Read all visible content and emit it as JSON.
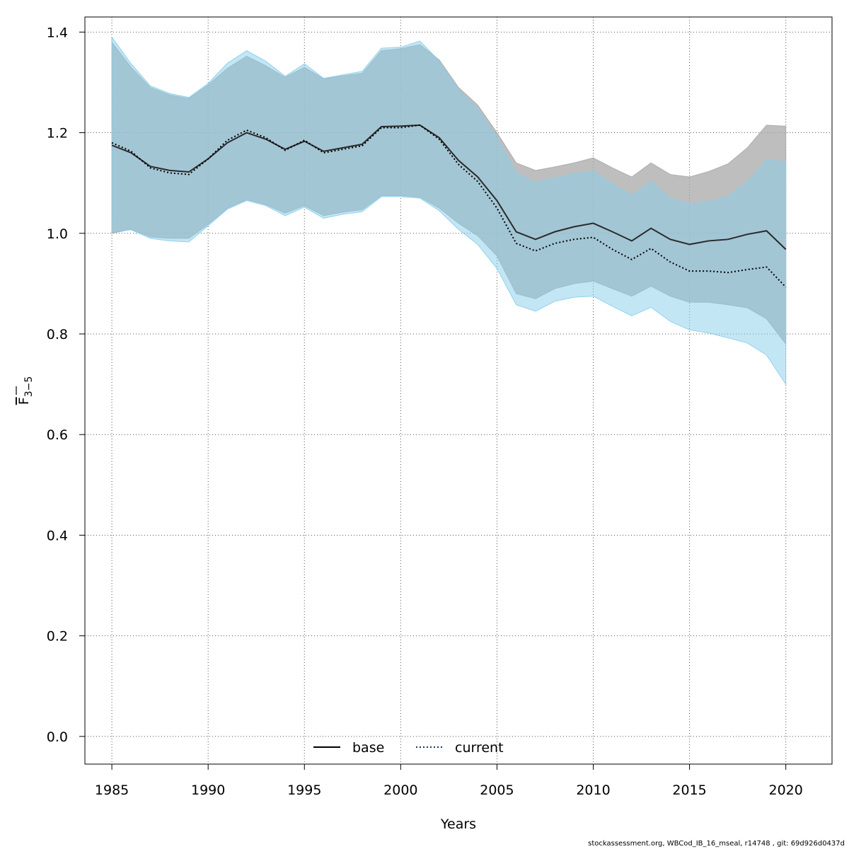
{
  "chart_data": {
    "type": "area",
    "xlabel": "Years",
    "ylabel": {
      "main": "F",
      "sub": "3−5"
    },
    "xlim": [
      1983.6,
      2022.4
    ],
    "ylim": [
      -0.055,
      1.43
    ],
    "x_ticks": [
      1985,
      1990,
      1995,
      2000,
      2005,
      2010,
      2015,
      2020
    ],
    "y_ticks": [
      0.0,
      0.2,
      0.4,
      0.6,
      0.8,
      1.0,
      1.2,
      1.4
    ],
    "y_tick_labels": [
      "0.0",
      "0.2",
      "0.4",
      "0.6",
      "0.8",
      "1.0",
      "1.2",
      "1.4"
    ],
    "x_tick_labels": [
      "1985",
      "1990",
      "1995",
      "2000",
      "2005",
      "2010",
      "2015",
      "2020"
    ],
    "grid": true,
    "legend_position": "bottom",
    "x": [
      1985,
      1986,
      1987,
      1988,
      1989,
      1990,
      1991,
      1992,
      1993,
      1994,
      1995,
      1996,
      1997,
      1998,
      1999,
      2000,
      2001,
      2002,
      2003,
      2004,
      2005,
      2006,
      2007,
      2008,
      2009,
      2010,
      2011,
      2012,
      2013,
      2014,
      2015,
      2016,
      2017,
      2018,
      2019,
      2020
    ],
    "series": [
      {
        "name": "base",
        "line_color": "#000000",
        "band_color": "#a8a8a8",
        "line_style": "solid",
        "values": [
          1.175,
          1.16,
          1.133,
          1.125,
          1.122,
          1.148,
          1.18,
          1.2,
          1.187,
          1.167,
          1.183,
          1.163,
          1.17,
          1.177,
          1.212,
          1.213,
          1.215,
          1.19,
          1.145,
          1.112,
          1.065,
          1.003,
          0.988,
          1.003,
          1.013,
          1.02,
          1.003,
          0.985,
          1.01,
          0.988,
          0.978,
          0.985,
          0.988,
          0.998,
          1.005,
          0.968
        ],
        "lower": [
          1.0,
          1.008,
          0.993,
          0.99,
          0.99,
          1.018,
          1.05,
          1.067,
          1.057,
          1.04,
          1.055,
          1.035,
          1.042,
          1.047,
          1.075,
          1.075,
          1.072,
          1.05,
          1.02,
          0.995,
          0.955,
          0.88,
          0.87,
          0.89,
          0.9,
          0.905,
          0.89,
          0.875,
          0.895,
          0.875,
          0.863,
          0.863,
          0.858,
          0.852,
          0.83,
          0.78
        ],
        "upper": [
          1.38,
          1.33,
          1.29,
          1.275,
          1.268,
          1.295,
          1.328,
          1.352,
          1.333,
          1.31,
          1.33,
          1.307,
          1.313,
          1.318,
          1.363,
          1.367,
          1.375,
          1.345,
          1.29,
          1.255,
          1.2,
          1.14,
          1.125,
          1.132,
          1.14,
          1.15,
          1.13,
          1.112,
          1.14,
          1.117,
          1.112,
          1.123,
          1.138,
          1.17,
          1.215,
          1.213
        ]
      },
      {
        "name": "current",
        "line_color": "#0e3b63",
        "band_color": "#87ceeb",
        "line_style": "dotted",
        "values": [
          1.18,
          1.163,
          1.13,
          1.12,
          1.117,
          1.148,
          1.185,
          1.205,
          1.19,
          1.165,
          1.185,
          1.16,
          1.167,
          1.174,
          1.21,
          1.21,
          1.215,
          1.187,
          1.137,
          1.103,
          1.05,
          0.98,
          0.965,
          0.98,
          0.988,
          0.992,
          0.968,
          0.948,
          0.97,
          0.943,
          0.925,
          0.925,
          0.922,
          0.928,
          0.933,
          0.893
        ],
        "lower": [
          1.003,
          1.007,
          0.99,
          0.985,
          0.983,
          1.015,
          1.048,
          1.065,
          1.055,
          1.035,
          1.052,
          1.03,
          1.038,
          1.043,
          1.073,
          1.073,
          1.07,
          1.045,
          1.008,
          0.978,
          0.93,
          0.858,
          0.845,
          0.865,
          0.873,
          0.875,
          0.855,
          0.836,
          0.853,
          0.825,
          0.808,
          0.802,
          0.792,
          0.782,
          0.758,
          0.7
        ],
        "upper": [
          1.39,
          1.337,
          1.293,
          1.278,
          1.27,
          1.298,
          1.338,
          1.363,
          1.342,
          1.312,
          1.337,
          1.308,
          1.315,
          1.322,
          1.368,
          1.37,
          1.382,
          1.343,
          1.285,
          1.248,
          1.19,
          1.12,
          1.1,
          1.11,
          1.118,
          1.123,
          1.098,
          1.075,
          1.103,
          1.07,
          1.058,
          1.063,
          1.073,
          1.102,
          1.145,
          1.143
        ]
      }
    ]
  },
  "footer": "stockassessment.org, WBCod_IB_16_mseal, r14748 , git: 69d926d0437d"
}
